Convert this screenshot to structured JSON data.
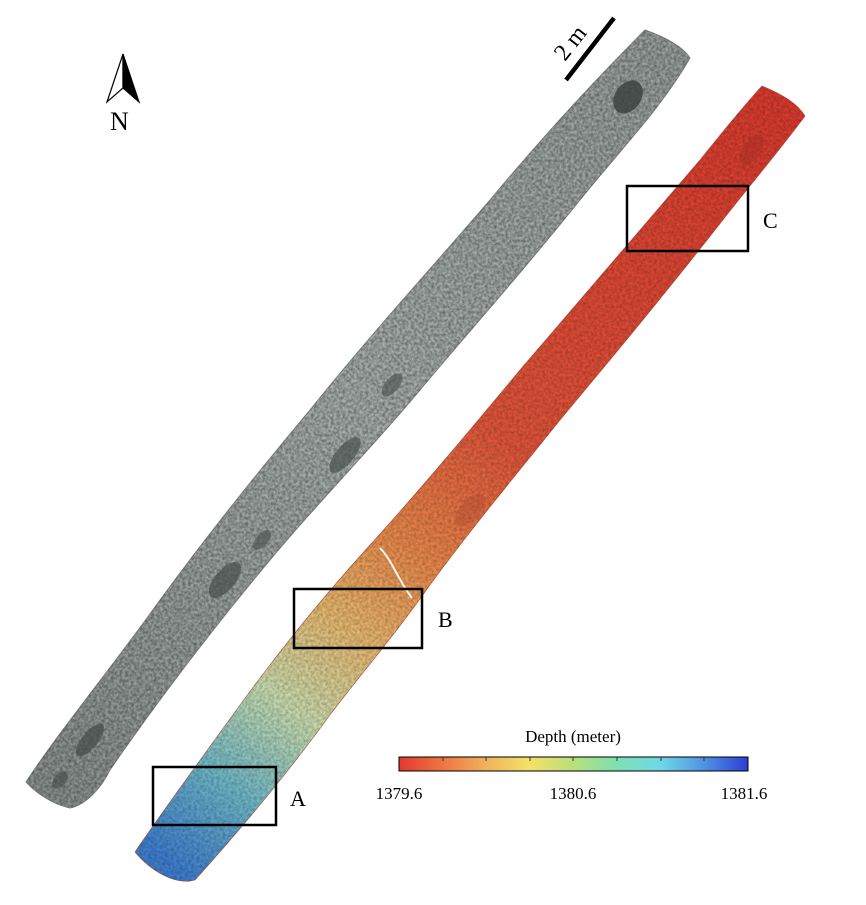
{
  "north_label": "N",
  "scale_bar": {
    "label": "2 m"
  },
  "grayscale_strip": {
    "icon": "seafloor-mosaic-grayscale"
  },
  "depth_strip": {
    "icon": "seafloor-mosaic-depth-colored"
  },
  "boxes": [
    {
      "id": "A",
      "label": "A"
    },
    {
      "id": "B",
      "label": "B"
    },
    {
      "id": "C",
      "label": "C"
    }
  ],
  "colorbar": {
    "title": "Depth (meter)",
    "min_label": "1379.6",
    "mid_label": "1380.6",
    "max_label": "1381.6",
    "range": [
      1379.6,
      1381.6
    ],
    "colors": [
      "#e03a2e",
      "#ee7240",
      "#f0b35c",
      "#f5e06a",
      "#b9e07a",
      "#7fe0b0",
      "#6fd8e8",
      "#4f8fe0",
      "#2b3fd6"
    ]
  }
}
